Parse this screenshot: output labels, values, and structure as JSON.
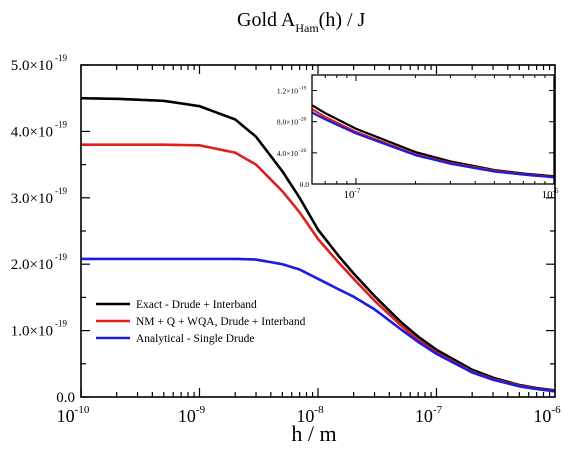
{
  "chart_data": {
    "type": "line",
    "title": "Gold A",
    "title_sub": "Ham",
    "title_tail": "(h) / J",
    "xlabel": "h / m",
    "ylabel": "",
    "x_scale": "log",
    "xlim": [
      1e-10,
      1e-06
    ],
    "ylim": [
      0,
      5e-19
    ],
    "x_ticks": [
      {
        "value": 1e-10,
        "base": "10",
        "exp": "-10"
      },
      {
        "value": 1e-09,
        "base": "10",
        "exp": "-9"
      },
      {
        "value": 1e-08,
        "base": "10",
        "exp": "-8"
      },
      {
        "value": 1e-07,
        "base": "10",
        "exp": "-7"
      },
      {
        "value": 1e-06,
        "base": "10",
        "exp": "-6"
      }
    ],
    "y_ticks": [
      {
        "value": 0,
        "main": "0.0",
        "exp": ""
      },
      {
        "value": 1e-19,
        "main": "1.0×10",
        "exp": "-19"
      },
      {
        "value": 2e-19,
        "main": "2.0×10",
        "exp": "-19"
      },
      {
        "value": 3e-19,
        "main": "3.0×10",
        "exp": "-19"
      },
      {
        "value": 4e-19,
        "main": "4.0×10",
        "exp": "-19"
      },
      {
        "value": 5e-19,
        "main": "5.0×10",
        "exp": "-19"
      }
    ],
    "grid": false,
    "legend_position": "lower-left",
    "x": [
      1e-10,
      2e-10,
      5e-10,
      1e-09,
      2e-09,
      3e-09,
      5e-09,
      7e-09,
      1e-08,
      1.5e-08,
      2e-08,
      3e-08,
      5e-08,
      7e-08,
      1e-07,
      2e-07,
      3e-07,
      5e-07,
      7e-07,
      1e-06
    ],
    "series": [
      {
        "name": "Exact - Drude + Interband",
        "color": "#000000",
        "values": [
          4.5e-19,
          4.49e-19,
          4.46e-19,
          4.38e-19,
          4.18e-19,
          3.92e-19,
          3.4e-19,
          3e-19,
          2.52e-19,
          2.12e-19,
          1.86e-19,
          1.52e-19,
          1.13e-19,
          9.1e-20,
          7.1e-20,
          4.1e-20,
          2.9e-20,
          1.8e-20,
          1.35e-20,
          1e-20
        ]
      },
      {
        "name": "NM + Q + WQA, Drude + Interband",
        "color": "#e0201c",
        "values": [
          3.8e-19,
          3.8e-19,
          3.8e-19,
          3.79e-19,
          3.68e-19,
          3.5e-19,
          3.1e-19,
          2.78e-19,
          2.38e-19,
          2.02e-19,
          1.78e-19,
          1.45e-19,
          1.08e-19,
          8.6e-20,
          6.7e-20,
          3.8e-20,
          2.7e-20,
          1.7e-20,
          1.25e-20,
          9e-21
        ]
      },
      {
        "name": "Analytical - Single Drude",
        "color": "#1c1ce0",
        "values": [
          2.08e-19,
          2.08e-19,
          2.08e-19,
          2.08e-19,
          2.08e-19,
          2.07e-19,
          2e-19,
          1.92e-19,
          1.78e-19,
          1.62e-19,
          1.51e-19,
          1.32e-19,
          1.02e-19,
          8.3e-20,
          6.5e-20,
          3.7e-20,
          2.6e-20,
          1.6e-20,
          1.2e-20,
          8.5e-21
        ]
      }
    ],
    "inset": {
      "xlim": [
        6e-08,
        1e-06
      ],
      "ylim": [
        0,
        1.4e-19
      ],
      "x_ticks": [
        {
          "value": 1e-07,
          "base": "10",
          "exp": "-7"
        },
        {
          "value": 1e-06,
          "base": "10",
          "exp": "-6"
        }
      ],
      "y_ticks": [
        {
          "value": 0,
          "main": "0.0",
          "exp": ""
        },
        {
          "value": 4e-20,
          "main": "4.0×10",
          "exp": "-20"
        },
        {
          "value": 8e-20,
          "main": "8.0×10",
          "exp": "-20"
        },
        {
          "value": 1.2e-19,
          "main": "1.2×10",
          "exp": "-19"
        }
      ]
    }
  }
}
